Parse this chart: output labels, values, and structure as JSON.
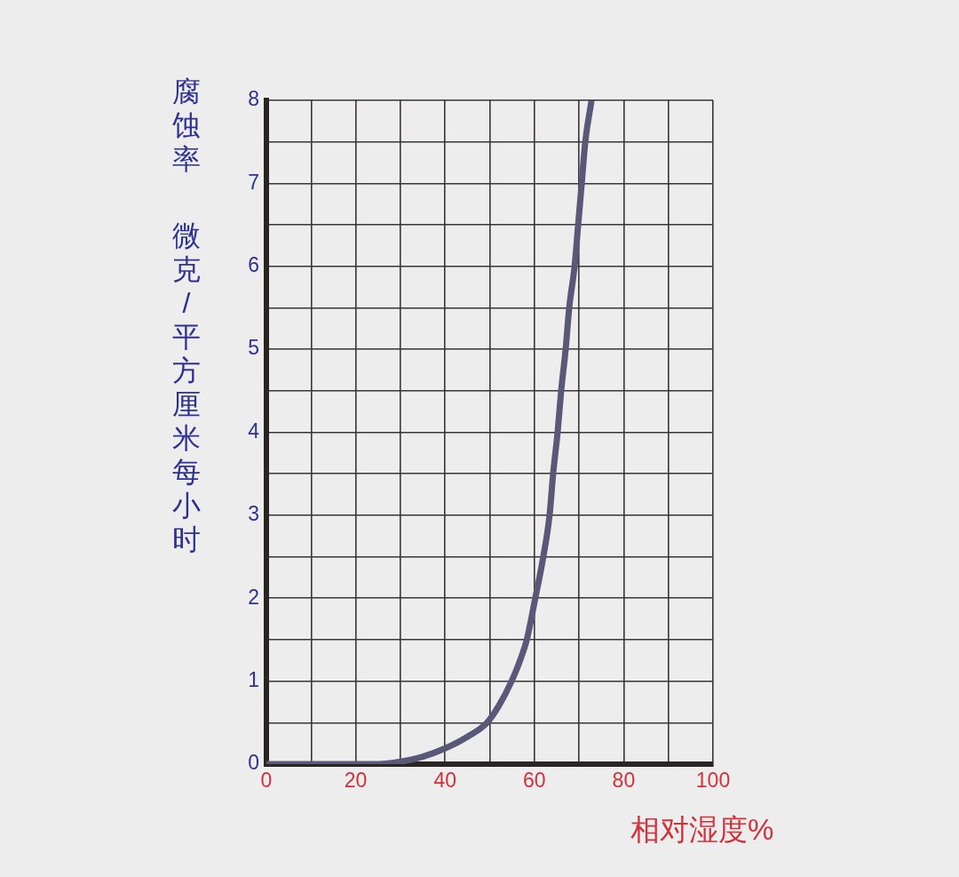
{
  "chart_data": {
    "type": "line",
    "xlabel": "相对湿度%",
    "ylabel": "腐蚀率",
    "annotations": [
      "微克/平方厘米每小时"
    ],
    "x": [
      0,
      20,
      25,
      30,
      35,
      40,
      45,
      49.4,
      52,
      54.9,
      57,
      58.3,
      60.2,
      62,
      63.4,
      64.2,
      65.2,
      66,
      67,
      67.8,
      69,
      69.8,
      70.6,
      71.4,
      72.8
    ],
    "series": [
      {
        "color": "#5a5878",
        "values": [
          0,
          0,
          0,
          0.03,
          0.09,
          0.19,
          0.33,
          0.5,
          0.7,
          1,
          1.28,
          1.5,
          2,
          2.5,
          3,
          3.5,
          4,
          4.5,
          5,
          5.5,
          6,
          6.5,
          7,
          7.5,
          8
        ]
      }
    ],
    "xlim": [
      0,
      100
    ],
    "ylim": [
      0,
      8
    ],
    "xticks": [
      0,
      {
        "value": 10,
        "label": null
      },
      20,
      {
        "value": 30,
        "label": null
      },
      40,
      {
        "value": 50,
        "label": null
      },
      60,
      {
        "value": 70,
        "label": null
      },
      80,
      {
        "value": 90,
        "label": null
      },
      100
    ],
    "yticks": [
      0,
      {
        "value": 0.5,
        "label": null
      },
      1,
      {
        "value": 1.5,
        "label": null
      },
      2,
      {
        "value": 2.5,
        "label": null
      },
      3,
      {
        "value": 3.5,
        "label": null
      },
      4,
      {
        "value": 4.5,
        "label": null
      },
      5,
      {
        "value": 5.5,
        "label": null
      },
      6,
      {
        "value": 6.5,
        "label": null
      },
      7,
      {
        "value": 7.5,
        "label": null
      },
      8
    ],
    "grid": true,
    "marker": "none",
    "line_style": "solid"
  }
}
